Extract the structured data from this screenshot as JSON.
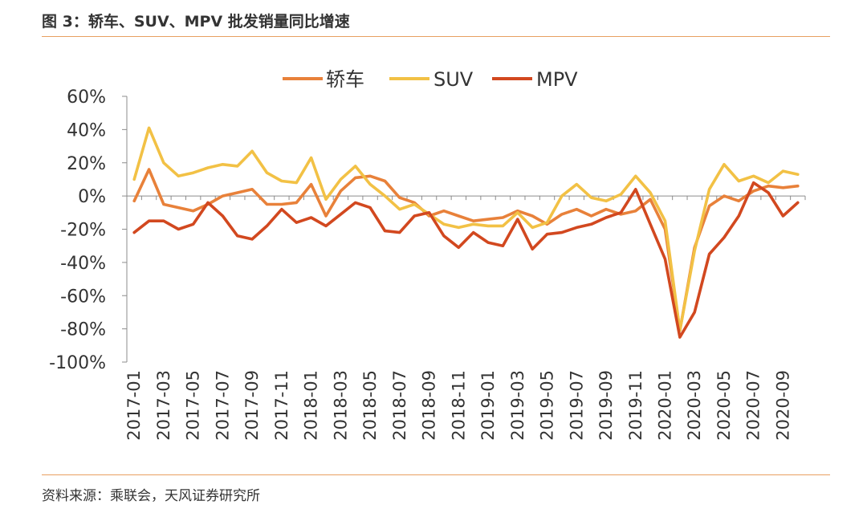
{
  "header": {
    "title": "图 3：轿车、SUV、MPV 批发销量同比增速"
  },
  "footer": {
    "source": "资料来源：乘联会，天风证券研究所"
  },
  "colors": {
    "sedan": "#E8813A",
    "suv": "#F2C145",
    "mpv": "#D2481F",
    "rule": "#E8A060",
    "axis": "#8C8C8C"
  },
  "chart_data": {
    "type": "line",
    "ylim": [
      -100,
      60
    ],
    "yticks": [
      "60%",
      "40%",
      "20%",
      "0%",
      "-20%",
      "-40%",
      "-60%",
      "-80%",
      "-100%"
    ],
    "ytick_values": [
      60,
      40,
      20,
      0,
      -20,
      -40,
      -60,
      -80,
      -100
    ],
    "xtick_labels": [
      "2017-01",
      "2017-03",
      "2017-05",
      "2017-07",
      "2017-09",
      "2017-11",
      "2018-01",
      "2018-03",
      "2018-05",
      "2018-07",
      "2018-09",
      "2018-11",
      "2019-01",
      "2019-03",
      "2019-05",
      "2019-07",
      "2019-09",
      "2019-11",
      "2020-01",
      "2020-03",
      "2020-05",
      "2020-07",
      "2020-09"
    ],
    "x": [
      "2017-01",
      "2017-02",
      "2017-03",
      "2017-04",
      "2017-05",
      "2017-06",
      "2017-07",
      "2017-08",
      "2017-09",
      "2017-10",
      "2017-11",
      "2017-12",
      "2018-01",
      "2018-02",
      "2018-03",
      "2018-04",
      "2018-05",
      "2018-06",
      "2018-07",
      "2018-08",
      "2018-09",
      "2018-10",
      "2018-11",
      "2018-12",
      "2019-01",
      "2019-02",
      "2019-03",
      "2019-04",
      "2019-05",
      "2019-06",
      "2019-07",
      "2019-08",
      "2019-09",
      "2019-10",
      "2019-11",
      "2019-12",
      "2020-01",
      "2020-02",
      "2020-03",
      "2020-04",
      "2020-05",
      "2020-06",
      "2020-07",
      "2020-08",
      "2020-09",
      "2020-10"
    ],
    "legend_position": "top-center",
    "series": [
      {
        "name": "轿车",
        "color": "#E8813A",
        "values": [
          -3,
          16,
          -5,
          -7,
          -9,
          -5,
          0,
          2,
          4,
          -5,
          -5,
          -4,
          7,
          -12,
          3,
          11,
          12,
          9,
          -1,
          -4,
          -12,
          -9,
          -12,
          -15,
          -14,
          -13,
          -9,
          -12,
          -17,
          -11,
          -8,
          -12,
          -8,
          -11,
          -9,
          -2,
          -20,
          -81,
          -31,
          -6,
          0,
          -3,
          3,
          6,
          5,
          6
        ]
      },
      {
        "name": "SUV",
        "color": "#F2C145",
        "values": [
          10,
          41,
          20,
          12,
          14,
          17,
          19,
          18,
          27,
          14,
          9,
          8,
          23,
          -2,
          10,
          18,
          7,
          0,
          -8,
          -5,
          -11,
          -17,
          -19,
          -17,
          -18,
          -18,
          -10,
          -19,
          -16,
          0,
          7,
          -1,
          -3,
          1,
          12,
          2,
          -15,
          -81,
          -33,
          4,
          19,
          9,
          12,
          8,
          15,
          13
        ]
      },
      {
        "name": "MPV",
        "color": "#D2481F",
        "values": [
          -22,
          -15,
          -15,
          -20,
          -17,
          -4,
          -12,
          -24,
          -26,
          -18,
          -8,
          -16,
          -13,
          -18,
          -11,
          -4,
          -7,
          -21,
          -22,
          -12,
          -10,
          -24,
          -31,
          -22,
          -28,
          -30,
          -14,
          -32,
          -23,
          -22,
          -19,
          -17,
          -13,
          -10,
          4,
          -17,
          -38,
          -85,
          -70,
          -35,
          -25,
          -12,
          8,
          2,
          -12,
          -4
        ]
      }
    ]
  }
}
